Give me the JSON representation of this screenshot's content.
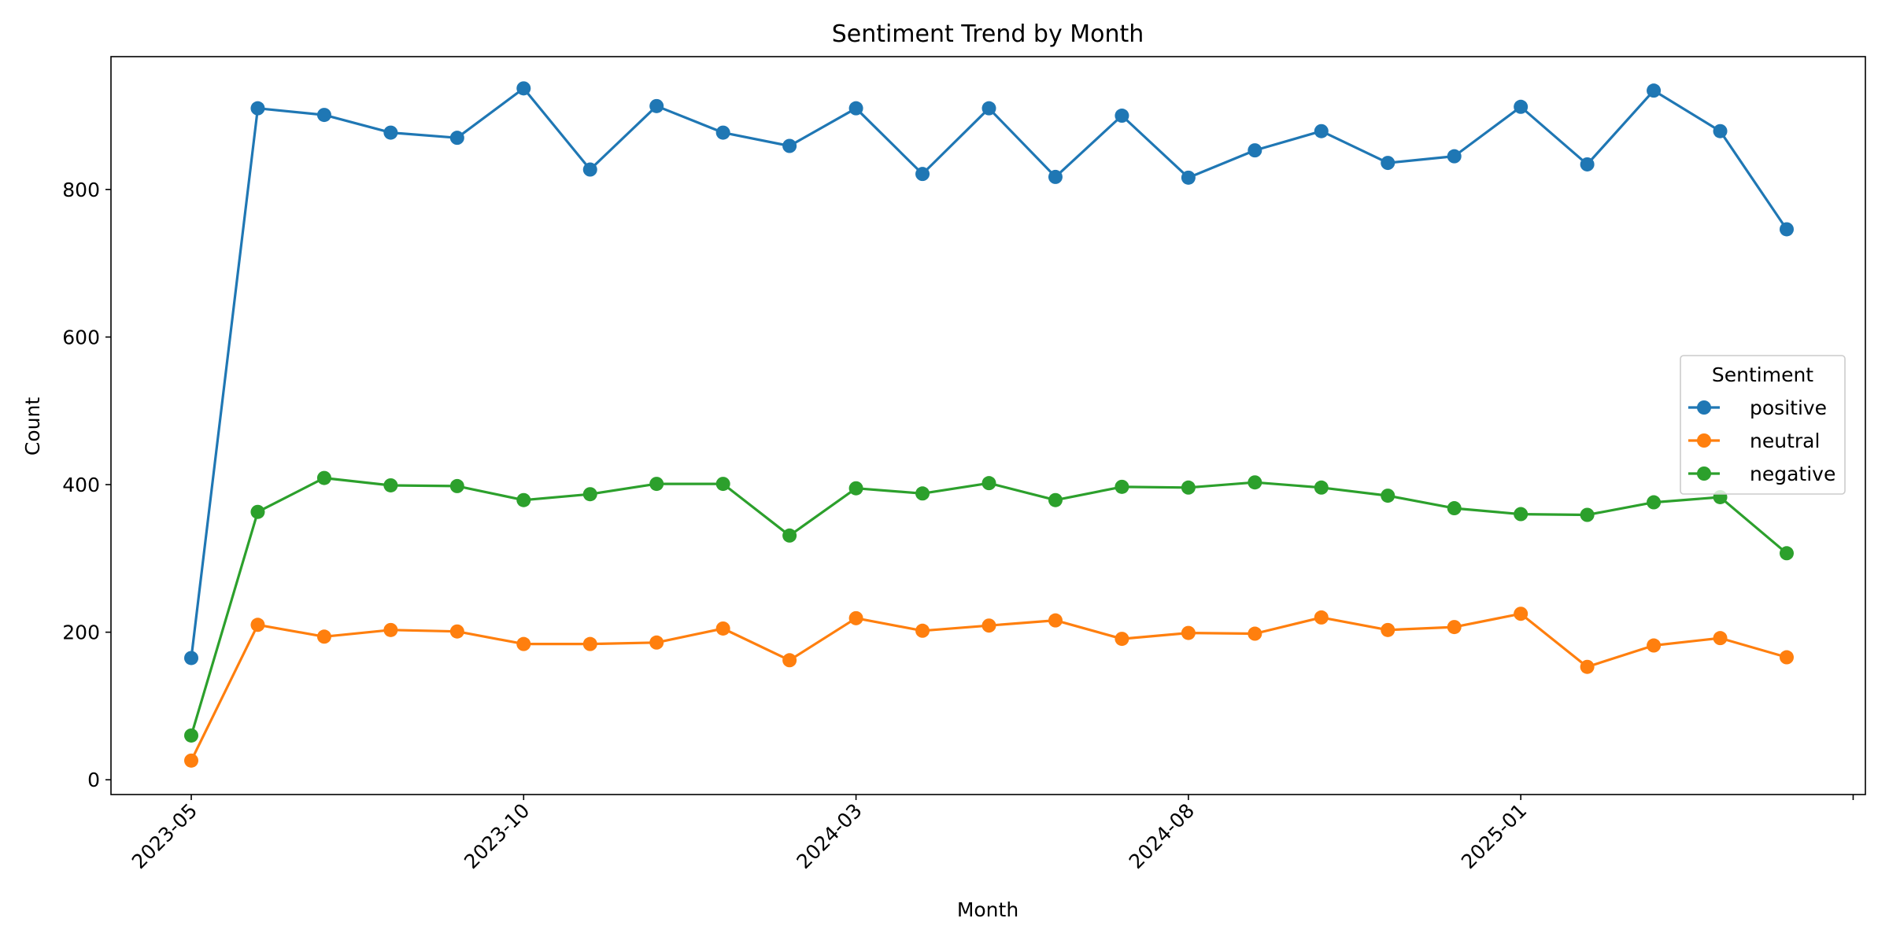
{
  "chart_data": {
    "type": "line",
    "title": "Sentiment Trend by Month",
    "xlabel": "Month",
    "ylabel": "Count",
    "x": [
      "2023-05",
      "2023-06",
      "2023-07",
      "2023-08",
      "2023-09",
      "2023-10",
      "2023-11",
      "2023-12",
      "2024-01",
      "2024-02",
      "2024-03",
      "2024-04",
      "2024-05",
      "2024-06",
      "2024-07",
      "2024-08",
      "2024-09",
      "2024-10",
      "2024-11",
      "2024-12",
      "2025-01",
      "2025-02",
      "2025-03",
      "2025-04",
      "2025-05"
    ],
    "x_tick_labels": [
      "2023-05",
      "2023-10",
      "2024-03",
      "2024-08",
      "2025-01"
    ],
    "y_ticks": [
      0,
      200,
      400,
      600,
      800
    ],
    "ylim": [
      -20,
      980
    ],
    "grid": false,
    "legend": {
      "title": "Sentiment",
      "placement": "center-right"
    },
    "series": [
      {
        "name": "positive",
        "color": "#1f77b4",
        "values": [
          165,
          910,
          901,
          877,
          870,
          937,
          827,
          913,
          877,
          859,
          910,
          821,
          910,
          817,
          900,
          816,
          853,
          879,
          836,
          845,
          912,
          834,
          934,
          879,
          746
        ]
      },
      {
        "name": "neutral",
        "color": "#ff7f0e",
        "values": [
          26,
          210,
          194,
          203,
          201,
          184,
          184,
          186,
          205,
          162,
          219,
          202,
          209,
          216,
          191,
          199,
          198,
          220,
          203,
          207,
          225,
          153,
          182,
          192,
          166
        ]
      },
      {
        "name": "negative",
        "color": "#2ca02c",
        "values": [
          60,
          363,
          409,
          399,
          398,
          379,
          387,
          401,
          401,
          331,
          395,
          388,
          402,
          379,
          397,
          396,
          403,
          396,
          385,
          368,
          360,
          359,
          376,
          383,
          307
        ]
      }
    ]
  }
}
